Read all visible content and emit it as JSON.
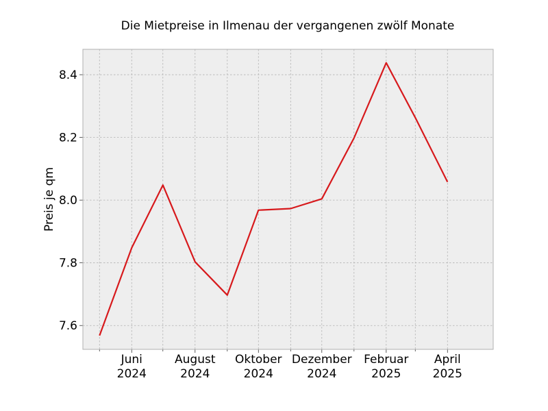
{
  "chart_data": {
    "type": "line",
    "title": "Die Mietpreise in Ilmenau der vergangenen zwölf Monate",
    "xlabel": "",
    "ylabel": "Preis je qm",
    "x": [
      "2024-05",
      "2024-06",
      "2024-07",
      "2024-08",
      "2024-09",
      "2024-10",
      "2024-11",
      "2024-12",
      "2025-01",
      "2025-02",
      "2025-03",
      "2025-04"
    ],
    "series": [
      {
        "values": [
          7.568,
          7.848,
          8.048,
          7.803,
          7.697,
          7.968,
          7.973,
          8.004,
          8.198,
          8.438,
          8.263,
          8.058
        ],
        "color": "#d7191c"
      }
    ],
    "xlim": [
      "2024-04-15",
      "2025-05-15"
    ],
    "ylim": [
      7.524,
      8.481
    ],
    "yticks": [
      7.6,
      7.8,
      8.0,
      8.2,
      8.4
    ],
    "ytick_labels": [
      "7.6",
      "7.8",
      "8.0",
      "8.2",
      "8.4"
    ],
    "xticks_major": [
      {
        "x": "2024-06",
        "label": [
          "Juni",
          "2024"
        ]
      },
      {
        "x": "2024-08",
        "label": [
          "August",
          "2024"
        ]
      },
      {
        "x": "2024-10",
        "label": [
          "Oktober",
          "2024"
        ]
      },
      {
        "x": "2024-12",
        "label": [
          "Dezember",
          "2024"
        ]
      },
      {
        "x": "2025-02",
        "label": [
          "Februar",
          "2025"
        ]
      },
      {
        "x": "2025-04",
        "label": [
          "April",
          "2025"
        ]
      }
    ],
    "xticks_minor": [
      "2024-05",
      "2024-07",
      "2024-09",
      "2024-11",
      "2025-01",
      "2025-03"
    ],
    "grid": true,
    "background": "#eeeeee"
  }
}
